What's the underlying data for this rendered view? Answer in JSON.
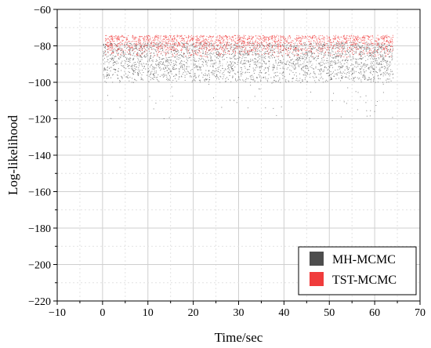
{
  "chart_data": {
    "type": "scatter",
    "title": "",
    "xlabel": "Time/sec",
    "ylabel": "Log-likelihood",
    "xlim": [
      -10,
      70
    ],
    "ylim": [
      -220,
      -60
    ],
    "xticks": [
      -10,
      0,
      10,
      20,
      30,
      40,
      50,
      60,
      70
    ],
    "yticks": [
      -60,
      -80,
      -100,
      -120,
      -140,
      -160,
      -180,
      -200,
      -220
    ],
    "xtick_labels": [
      "−10",
      "0",
      "10",
      "20",
      "30",
      "40",
      "50",
      "60",
      "70"
    ],
    "ytick_labels": [
      "−60",
      "−80",
      "−100",
      "−120",
      "−140",
      "−160",
      "−180",
      "−200",
      "−220"
    ],
    "grid": true,
    "legend_position": "bottom-right",
    "series": [
      {
        "name": "MH-MCMC",
        "color": "#4d4d4d",
        "x_range": [
          0,
          64
        ],
        "y_range": [
          -100,
          -78
        ],
        "y_outliers_min": -120
      },
      {
        "name": "TST-MCMC",
        "color": "#f03c3c",
        "x_range": [
          0.5,
          64
        ],
        "y_range": [
          -86,
          -74
        ]
      }
    ]
  }
}
